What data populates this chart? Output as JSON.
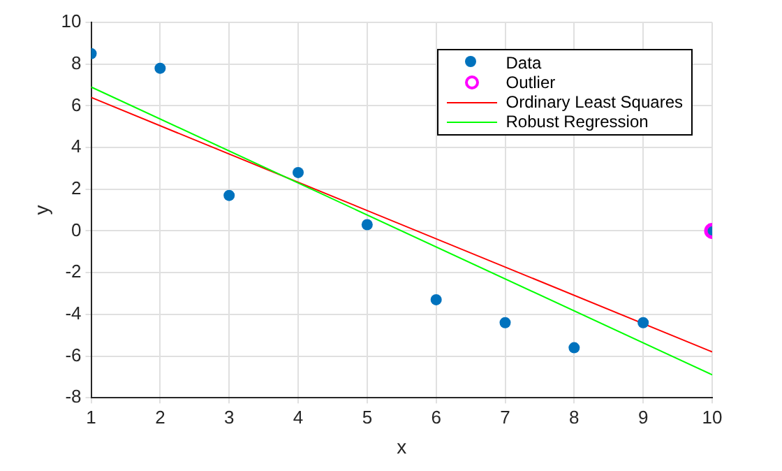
{
  "chart_data": {
    "type": "scatter",
    "xlabel": "x",
    "ylabel": "y",
    "xlim": [
      1,
      10
    ],
    "xticks": [
      1,
      2,
      3,
      4,
      5,
      6,
      7,
      8,
      9,
      10
    ],
    "ylim": [
      -8,
      10
    ],
    "yticks": [
      -8,
      -6,
      -4,
      -2,
      0,
      2,
      4,
      6,
      8,
      10
    ],
    "grid": true,
    "legend": "top right",
    "series": [
      {
        "name": "Data",
        "type": "scatter",
        "marker": "circle",
        "color": "#0072bd",
        "x": [
          1,
          2,
          3,
          4,
          5,
          6,
          7,
          8,
          9,
          10
        ],
        "values": [
          8.5,
          7.8,
          1.7,
          2.8,
          0.3,
          -3.3,
          -4.4,
          -5.6,
          -4.4,
          0
        ]
      },
      {
        "name": "Outlier",
        "type": "scatter",
        "marker": "circle",
        "color": "#ff00ff",
        "x": [
          10
        ],
        "values": [
          0
        ]
      },
      {
        "name": "Ordinary Least Squares",
        "type": "line",
        "marker": "none",
        "color": "#ff0000",
        "x": [
          1,
          10
        ],
        "values": [
          6.4,
          -5.8
        ]
      },
      {
        "name": "Robust Regression",
        "type": "line",
        "marker": "none",
        "color": "#00ff00",
        "x": [
          1,
          10
        ],
        "values": [
          6.9,
          -6.9
        ]
      }
    ]
  }
}
